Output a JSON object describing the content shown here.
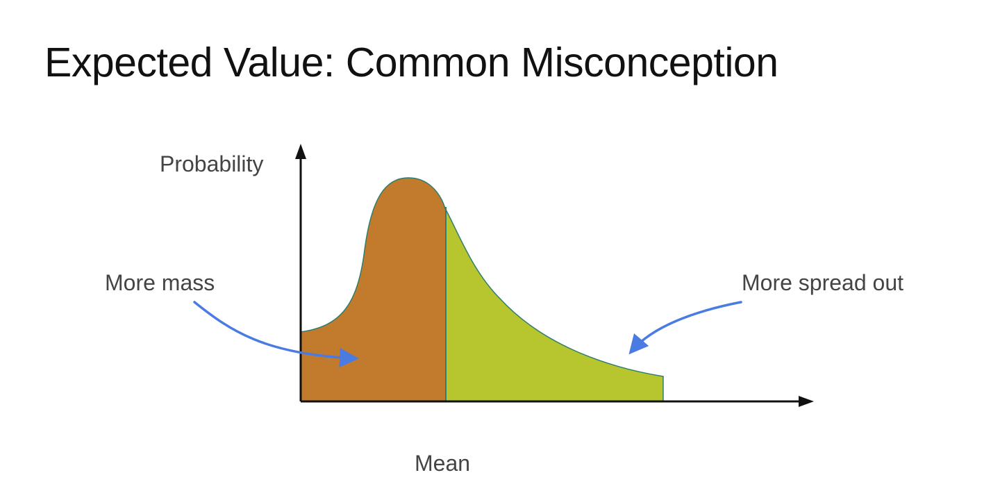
{
  "slide": {
    "title": "Expected Value: Common Misconception"
  },
  "diagram": {
    "y_axis_label": "Probability",
    "x_axis_label": "Mean",
    "left_annotation": "More mass",
    "right_annotation": "More spread out"
  },
  "colors": {
    "left_region_fill": "#C27A2C",
    "right_region_fill": "#B7C52F",
    "curve_stroke": "#2E7D6E",
    "axis": "#111111",
    "arrow": "#4A7BE3",
    "title_text": "#111111",
    "label_text": "#444444"
  }
}
